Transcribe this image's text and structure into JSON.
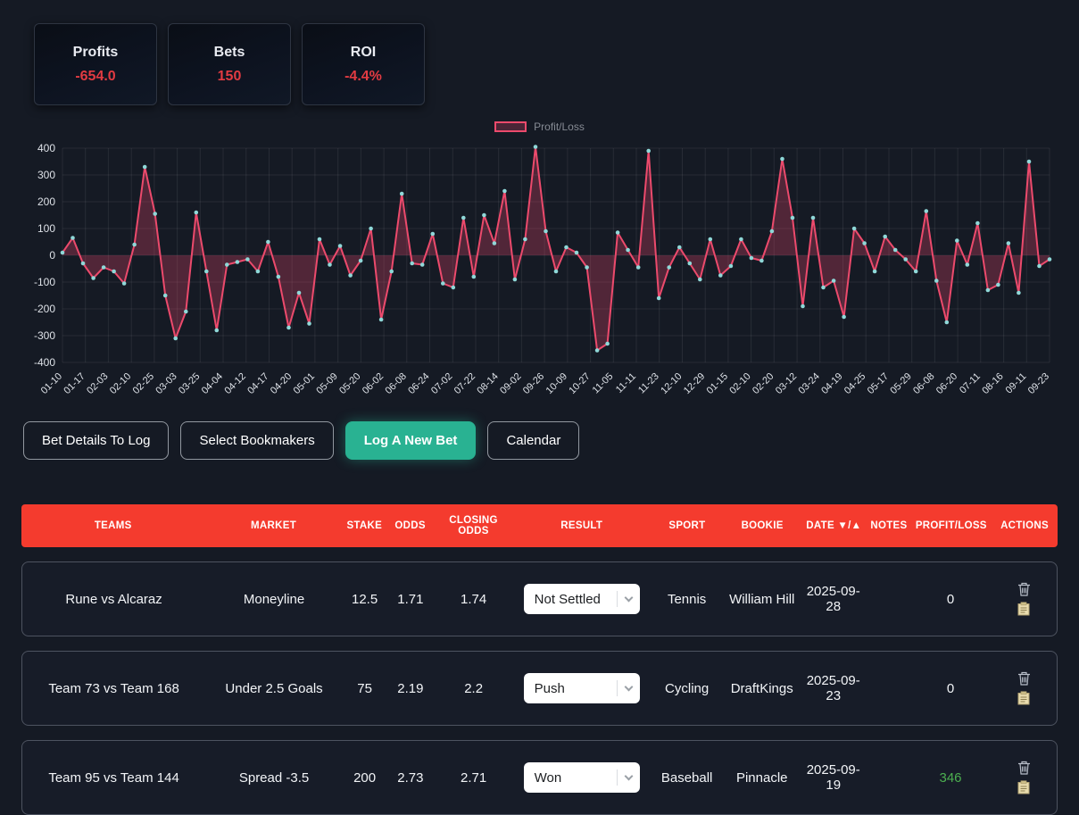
{
  "colors": {
    "accent_red": "#e23b42",
    "header_red": "#f43b2e",
    "active_teal": "#29b292",
    "profit_green": "#4caf50",
    "line_pink": "#ec4a6c",
    "point_teal": "#8fd8d8"
  },
  "stats": [
    {
      "label": "Profits",
      "value": "-654.0"
    },
    {
      "label": "Bets",
      "value": "150"
    },
    {
      "label": "ROI",
      "value": "-4.4%"
    }
  ],
  "chart_data": {
    "type": "line",
    "title": "",
    "legend": [
      {
        "label": "Profit/Loss",
        "color": "#ec4a6c"
      }
    ],
    "ylabel": "",
    "xlabel": "",
    "ylim": [
      -400,
      400
    ],
    "yticks": [
      400,
      300,
      200,
      100,
      0,
      -100,
      -200,
      -300,
      -400
    ],
    "grid": true,
    "line_color": "#ec4a6c",
    "fill_color": "rgba(236,73,108,0.28)",
    "point_color": "#8fd8d8",
    "x_labels": [
      "01-10",
      "01-17",
      "02-03",
      "02-10",
      "02-25",
      "03-03",
      "03-25",
      "04-04",
      "04-12",
      "04-17",
      "04-20",
      "05-01",
      "05-09",
      "05-20",
      "06-02",
      "06-08",
      "06-24",
      "07-02",
      "07-22",
      "08-14",
      "09-02",
      "09-26",
      "10-09",
      "10-27",
      "11-05",
      "11-11",
      "11-23",
      "12-10",
      "12-29",
      "01-15",
      "02-10",
      "02-20",
      "03-12",
      "03-24",
      "04-19",
      "04-25",
      "05-17",
      "05-29",
      "06-08",
      "06-20",
      "07-11",
      "08-16",
      "09-11",
      "09-23"
    ],
    "values": [
      10,
      65,
      -30,
      -85,
      -45,
      -60,
      -105,
      40,
      330,
      155,
      -150,
      -310,
      -210,
      160,
      -60,
      -280,
      -35,
      -25,
      -15,
      -60,
      50,
      -80,
      -270,
      -140,
      -255,
      60,
      -35,
      35,
      -75,
      -20,
      100,
      -240,
      -60,
      230,
      -30,
      -35,
      80,
      -105,
      -120,
      140,
      -80,
      150,
      45,
      240,
      -90,
      60,
      405,
      90,
      -60,
      30,
      10,
      -45,
      -355,
      -330,
      85,
      20,
      -45,
      390,
      -160,
      -45,
      30,
      -30,
      -90,
      60,
      -75,
      -40,
      60,
      -10,
      -20,
      90,
      360,
      140,
      -190,
      140,
      -120,
      -95,
      -230,
      100,
      45,
      -60,
      70,
      20,
      -15,
      -60,
      165,
      -95,
      -250,
      55,
      -35,
      120,
      -130,
      -110,
      45,
      -140,
      350,
      -40,
      -15
    ]
  },
  "buttons": [
    {
      "label": "Bet Details To Log",
      "active": false
    },
    {
      "label": "Select Bookmakers",
      "active": false
    },
    {
      "label": "Log A New Bet",
      "active": true
    },
    {
      "label": "Calendar",
      "active": false
    }
  ],
  "table": {
    "headers": [
      "TEAMS",
      "MARKET",
      "STAKE",
      "ODDS",
      "CLOSING ODDS",
      "RESULT",
      "SPORT",
      "BOOKIE",
      "DATE ▼/▲",
      "NOTES",
      "PROFIT/LOSS",
      "ACTIONS"
    ],
    "rows": [
      {
        "teams": "Rune vs Alcaraz",
        "market": "Moneyline",
        "stake": "12.5",
        "odds": "1.71",
        "closing_odds": "1.74",
        "result": "Not Settled",
        "sport": "Tennis",
        "bookie": "William Hill",
        "date": "2025-09-28",
        "notes": "",
        "profit_loss": "0",
        "profit_color": "#f2f4f7"
      },
      {
        "teams": "Team 73 vs Team 168",
        "market": "Under 2.5 Goals",
        "stake": "75",
        "odds": "2.19",
        "closing_odds": "2.2",
        "result": "Push",
        "sport": "Cycling",
        "bookie": "DraftKings",
        "date": "2025-09-23",
        "notes": "",
        "profit_loss": "0",
        "profit_color": "#f2f4f7"
      },
      {
        "teams": "Team 95 vs Team 144",
        "market": "Spread -3.5",
        "stake": "200",
        "odds": "2.73",
        "closing_odds": "2.71",
        "result": "Won",
        "sport": "Baseball",
        "bookie": "Pinnacle",
        "date": "2025-09-19",
        "notes": "",
        "profit_loss": "346",
        "profit_color": "#4caf50"
      }
    ]
  }
}
